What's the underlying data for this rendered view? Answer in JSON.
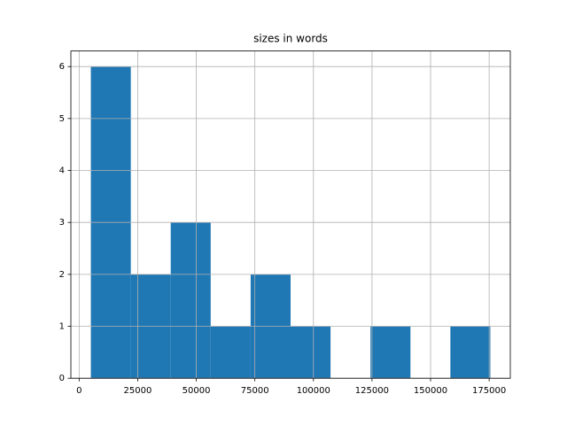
{
  "chart_data": {
    "type": "histogram",
    "title": "sizes in words",
    "bins": [
      5000,
      22050,
      39100,
      56150,
      73200,
      90250,
      107300,
      124350,
      141400,
      158450,
      175500
    ],
    "values": [
      6,
      2,
      3,
      1,
      2,
      1,
      0,
      1,
      0,
      1
    ],
    "color": "#1f77b4",
    "xlim": [
      -3525,
      184025
    ],
    "xticks": [
      0,
      25000,
      50000,
      75000,
      100000,
      125000,
      150000,
      175000
    ],
    "ylim": [
      0,
      6.3
    ],
    "yticks": [
      0,
      1,
      2,
      3,
      4,
      5,
      6
    ],
    "grid": true
  }
}
